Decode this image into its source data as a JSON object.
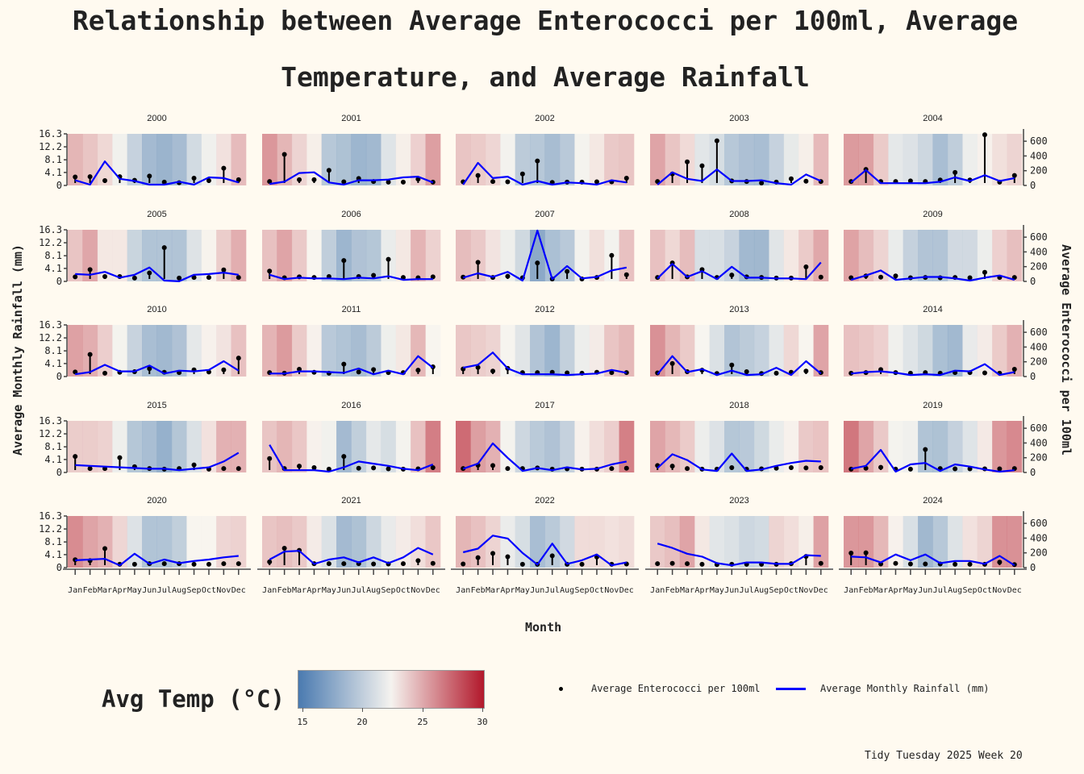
{
  "title_line1": "Relationship between Average Enterococci per 100ml, Average",
  "title_line2": "Temperature, and Average Rainfall",
  "y_left_label": "Average Monthly Rainfall (mm)",
  "y_right_label": "Average Enterococci per 100ml",
  "x_label": "Month",
  "colorbar_title": "Avg Temp (°C)",
  "colorbar_ticks": [
    "15",
    "20",
    "25",
    "30"
  ],
  "legend": {
    "enterococci_label": "Average Enterococci per 100ml",
    "rainfall_label": "Average Monthly Rainfall (mm)"
  },
  "caption": "Tidy Tuesday 2025 Week 20",
  "colors": {
    "background": "#fffaf0",
    "rainfall_line": "#0000ff",
    "enterococci_stem": "#000000",
    "temp_cold": "#4a7ab0",
    "temp_mid": "#f5f3ef",
    "temp_hot": "#b2182b"
  },
  "chart_data": {
    "type": "small-multiples (temperature heat strip + enterococci lollipop + rainfall line)",
    "months": [
      "Jan",
      "Feb",
      "Mar",
      "Apr",
      "May",
      "Jun",
      "Jul",
      "Aug",
      "Sep",
      "Oct",
      "Nov",
      "Dec"
    ],
    "ylim_left": [
      0,
      16.3
    ],
    "y_ticks_left": [
      "0",
      "4.1",
      "8.1",
      "12.2",
      "16.3"
    ],
    "ylim_right": [
      0,
      700
    ],
    "y_ticks_right": [
      "0",
      "200",
      "400",
      "600"
    ],
    "temp_range": [
      14.2,
      30.3
    ],
    "panels": [
      {
        "year": "2000",
        "temp": [
          25.6,
          24.8,
          23.8,
          21.8,
          18.9,
          16.6,
          16.0,
          16.8,
          19.7,
          21.7,
          23.3,
          25.3
        ],
        "rainfall": [
          2.0,
          2.1,
          0.8,
          2.1,
          0.9,
          2.3,
          0.3,
          0.1,
          1.6,
          0.8,
          4.9,
          1.1
        ],
        "enterococci": [
          60,
          0,
          320,
          80,
          50,
          0,
          0,
          40,
          0,
          100,
          90,
          30
        ]
      },
      {
        "year": "2001",
        "temp": [
          27.2,
          25.6,
          24.0,
          22.6,
          17.9,
          17.3,
          16.2,
          16.5,
          20.6,
          22.6,
          24.2,
          26.8
        ],
        "rainfall": [
          0.5,
          9.5,
          1.1,
          1.1,
          4.2,
          0.4,
          1.5,
          0.5,
          0.3,
          0.3,
          1.3,
          0.3
        ],
        "enterococci": [
          10,
          40,
          160,
          170,
          30,
          0,
          60,
          60,
          70,
          100,
          110,
          30
        ]
      },
      {
        "year": "2002",
        "temp": [
          24.8,
          24.5,
          23.9,
          21.9,
          18.2,
          17.9,
          16.9,
          18.0,
          22.0,
          23.0,
          24.6,
          24.8
        ],
        "rainfall": [
          0.4,
          2.5,
          0.5,
          0.4,
          3.0,
          7.3,
          0.2,
          0.3,
          0.3,
          0.4,
          0.4,
          1.6
        ],
        "enterococci": [
          0,
          300,
          90,
          110,
          0,
          50,
          0,
          30,
          20,
          0,
          60,
          30
        ]
      },
      {
        "year": "2003",
        "temp": [
          26.5,
          24.8,
          23.7,
          20.8,
          20.0,
          17.9,
          17.2,
          17.0,
          18.9,
          21.1,
          22.6,
          25.4
        ],
        "rainfall": [
          0.5,
          3.0,
          7.0,
          5.7,
          14.0,
          0.7,
          0.5,
          0.0,
          0.3,
          1.4,
          0.6,
          0.5
        ],
        "enterococci": [
          0,
          170,
          80,
          50,
          210,
          50,
          50,
          60,
          20,
          0,
          140,
          50
        ]
      },
      {
        "year": "2004",
        "temp": [
          27.0,
          26.8,
          24.5,
          21.0,
          20.4,
          19.4,
          17.0,
          18.5,
          21.5,
          22.5,
          23.4,
          24.0
        ],
        "rainfall": [
          0.5,
          4.5,
          0.5,
          0.5,
          0.7,
          0.5,
          1.0,
          3.5,
          1.0,
          16.0,
          0.3,
          2.5
        ],
        "enterococci": [
          30,
          200,
          20,
          20,
          20,
          20,
          40,
          100,
          50,
          130,
          50,
          90
        ]
      },
      {
        "year": "2005",
        "temp": [
          24.8,
          26.4,
          23.0,
          23.0,
          19.1,
          17.5,
          17.5,
          17.5,
          20.5,
          22.4,
          24.4,
          26.0
        ],
        "rainfall": [
          0.7,
          3.1,
          0.8,
          0.8,
          0.3,
          2.0,
          10.4,
          0.3,
          0.5,
          0.5,
          3.0,
          0.5
        ],
        "enterococci": [
          90,
          80,
          120,
          40,
          80,
          180,
          0,
          -10,
          80,
          90,
          110,
          80
        ]
      },
      {
        "year": "2006",
        "temp": [
          25.0,
          26.5,
          24.6,
          22.3,
          18.5,
          16.2,
          17.4,
          17.8,
          21.3,
          23.0,
          25.7,
          24.1
        ],
        "rainfall": [
          2.6,
          0.4,
          0.7,
          0.5,
          0.8,
          6.1,
          0.8,
          1.2,
          6.5,
          0.5,
          0.4,
          0.7
        ],
        "enterococci": [
          80,
          20,
          40,
          30,
          30,
          20,
          40,
          30,
          60,
          10,
          20,
          20
        ]
      },
      {
        "year": "2007",
        "temp": [
          25.2,
          24.6,
          23.2,
          21.6,
          19.5,
          15.0,
          17.1,
          18.0,
          21.9,
          23.4,
          21.9,
          25.0
        ],
        "rainfall": [
          0.6,
          5.5,
          0.5,
          0.9,
          0.4,
          5.3,
          0.0,
          2.5,
          0.0,
          0.5,
          7.8,
          1.4
        ],
        "enterococci": [
          40,
          100,
          50,
          120,
          0,
          690,
          20,
          200,
          30,
          50,
          140,
          180
        ]
      },
      {
        "year": "2008",
        "temp": [
          25.0,
          23.8,
          25.2,
          20.1,
          20.1,
          19.0,
          16.5,
          16.4,
          20.7,
          23.0,
          24.5,
          26.3
        ],
        "rainfall": [
          0.5,
          5.3,
          0.7,
          3.1,
          0.5,
          1.3,
          0.7,
          0.5,
          0.3,
          0.3,
          4.0,
          0.6
        ],
        "enterococci": [
          30,
          230,
          50,
          130,
          20,
          190,
          40,
          40,
          30,
          30,
          20,
          250
        ]
      },
      {
        "year": "2009",
        "temp": [
          26.6,
          25.2,
          24.0,
          21.3,
          18.8,
          17.6,
          17.6,
          19.6,
          19.6,
          21.5,
          24.2,
          25.1
        ],
        "rainfall": [
          0.4,
          1.0,
          0.6,
          1.0,
          0.4,
          0.5,
          0.4,
          0.5,
          0.4,
          2.2,
          0.5,
          0.5
        ],
        "enterococci": [
          10,
          70,
          140,
          10,
          30,
          50,
          50,
          30,
          0,
          40,
          70,
          10
        ]
      },
      {
        "year": "2010",
        "temp": [
          26.7,
          26.0,
          24.3,
          22.0,
          19.0,
          17.0,
          16.5,
          17.4,
          21.0,
          22.5,
          23.2,
          25.0
        ],
        "rainfall": [
          0.7,
          6.5,
          0.3,
          0.6,
          0.8,
          1.8,
          0.6,
          0.5,
          1.4,
          0.7,
          1.4,
          5.3
        ],
        "enterococci": [
          20,
          50,
          150,
          60,
          60,
          140,
          30,
          70,
          60,
          80,
          200,
          70
        ]
      },
      {
        "year": "2011",
        "temp": [
          25.7,
          27.0,
          24.5,
          22.5,
          18.0,
          17.5,
          16.9,
          18.2,
          21.6,
          23.0,
          25.5,
          22.3
        ],
        "rainfall": [
          0.5,
          0.3,
          1.6,
          0.6,
          0.3,
          3.3,
          0.7,
          1.5,
          0.5,
          0.5,
          1.3,
          2.4
        ],
        "enterococci": [
          30,
          30,
          60,
          60,
          50,
          40,
          100,
          20,
          70,
          20,
          270,
          110
        ]
      },
      {
        "year": "2012",
        "temp": [
          24.7,
          24.4,
          24.0,
          22.1,
          20.7,
          17.6,
          16.2,
          18.7,
          21.5,
          22.8,
          24.8,
          25.5
        ],
        "rainfall": [
          1.7,
          2.2,
          1.0,
          1.9,
          0.5,
          0.5,
          0.6,
          0.4,
          0.3,
          0.6,
          0.5,
          0.5
        ],
        "enterococci": [
          110,
          150,
          320,
          100,
          20,
          20,
          20,
          10,
          20,
          30,
          80,
          40
        ]
      },
      {
        "year": "2013",
        "temp": [
          27.5,
          25.6,
          24.5,
          22.2,
          20.3,
          17.6,
          18.2,
          18.9,
          21.0,
          23.8,
          22.3,
          26.5
        ],
        "rainfall": [
          0.4,
          3.5,
          0.8,
          1.3,
          0.2,
          3.0,
          0.8,
          0.2,
          0.3,
          0.6,
          1.0,
          0.5
        ],
        "enterococci": [
          20,
          270,
          50,
          90,
          10,
          70,
          10,
          20,
          110,
          10,
          200,
          30
        ]
      },
      {
        "year": "2014",
        "temp": [
          25.0,
          24.7,
          24.2,
          21.7,
          20.6,
          19.5,
          17.1,
          16.5,
          21.2,
          22.8,
          24.5,
          25.8
        ],
        "rainfall": [
          0.3,
          0.5,
          1.5,
          0.5,
          0.3,
          0.5,
          0.3,
          0.5,
          0.5,
          0.4,
          0.3,
          1.6
        ],
        "enterococci": [
          30,
          50,
          60,
          40,
          10,
          20,
          10,
          70,
          60,
          160,
          10,
          50
        ]
      },
      {
        "year": "2015",
        "temp": [
          24.4,
          24.4,
          24.1,
          21.6,
          17.8,
          17.0,
          15.7,
          17.7,
          20.3,
          23.3,
          25.8,
          25.8
        ],
        "rainfall": [
          4.5,
          0.5,
          0.5,
          4.1,
          1.1,
          0.5,
          0.3,
          0.5,
          1.7,
          0.3,
          0.5,
          0.5
        ],
        "enterococci": [
          90,
          80,
          70,
          60,
          50,
          40,
          40,
          20,
          40,
          60,
          140,
          260
        ]
      },
      {
        "year": "2016",
        "temp": [
          24.8,
          25.6,
          24.7,
          22.5,
          21.8,
          16.6,
          18.6,
          21.0,
          20.0,
          22.0,
          25.0,
          28.5
        ],
        "rainfall": [
          3.8,
          0.5,
          1.3,
          0.8,
          0.3,
          4.5,
          0.6,
          0.7,
          0.4,
          0.3,
          0.4,
          0.8
        ],
        "enterococci": [
          370,
          20,
          20,
          20,
          0,
          60,
          140,
          110,
          80,
          40,
          20,
          100
        ]
      },
      {
        "year": "2017",
        "temp": [
          29.5,
          26.8,
          25.8,
          22.0,
          19.4,
          18.1,
          17.4,
          18.8,
          22.5,
          23.5,
          24.3,
          28.4
        ],
        "rainfall": [
          0.5,
          1.6,
          1.5,
          0.5,
          0.5,
          0.7,
          0.3,
          0.4,
          0.3,
          0.3,
          0.5,
          0.6
        ],
        "enterococci": [
          40,
          110,
          390,
          190,
          10,
          50,
          20,
          60,
          30,
          40,
          100,
          140
        ]
      },
      {
        "year": "2018",
        "temp": [
          26.5,
          25.5,
          24.5,
          21.5,
          20.4,
          17.8,
          18.0,
          19.5,
          21.3,
          22.5,
          24.6,
          24.9
        ],
        "rainfall": [
          1.5,
          1.3,
          0.5,
          0.3,
          0.3,
          0.8,
          0.3,
          0.4,
          0.6,
          0.8,
          0.7,
          0.8
        ],
        "enterococci": [
          50,
          240,
          160,
          30,
          10,
          250,
          10,
          30,
          80,
          120,
          150,
          140
        ]
      },
      {
        "year": "2019",
        "temp": [
          28.9,
          26.5,
          24.6,
          22.0,
          21.7,
          17.5,
          17.3,
          18.8,
          20.6,
          22.9,
          27.2,
          27.9
        ],
        "rainfall": [
          0.3,
          0.6,
          0.9,
          0.3,
          0.3,
          6.8,
          0.5,
          0.4,
          0.4,
          0.4,
          0.4,
          0.5
        ],
        "enterococci": [
          40,
          80,
          300,
          0,
          100,
          120,
          10,
          100,
          70,
          30,
          0,
          20
        ]
      },
      {
        "year": "2020",
        "temp": [
          27.8,
          26.5,
          25.8,
          23.9,
          20.4,
          17.5,
          17.5,
          18.6,
          22.3,
          22.3,
          23.9,
          24.1
        ],
        "rainfall": [
          1.8,
          1.5,
          5.5,
          0.3,
          0.3,
          0.5,
          0.5,
          0.5,
          0.3,
          0.3,
          0.5,
          0.5
        ],
        "enterococci": [
          90,
          100,
          110,
          20,
          180,
          40,
          100,
          50,
          80,
          100,
          130,
          150
        ]
      },
      {
        "year": "2021",
        "temp": [
          24.8,
          25.1,
          24.6,
          22.8,
          20.3,
          16.6,
          17.3,
          19.4,
          21.2,
          22.8,
          23.5,
          24.7
        ],
        "rainfall": [
          1.1,
          5.6,
          4.9,
          0.5,
          0.5,
          0.5,
          0.5,
          0.4,
          0.4,
          0.5,
          1.5,
          0.6
        ],
        "enterococci": [
          100,
          210,
          220,
          40,
          100,
          130,
          60,
          130,
          50,
          130,
          260,
          170
        ]
      },
      {
        "year": "2022",
        "temp": [
          25.6,
          25.0,
          24.0,
          21.4,
          20.0,
          17.0,
          18.1,
          19.6,
          23.6,
          23.6,
          23.3,
          23.6
        ],
        "rainfall": [
          0.4,
          2.5,
          3.9,
          2.8,
          0.3,
          0.3,
          3.1,
          0.3,
          0.3,
          2.7,
          0.3,
          0.4
        ],
        "enterococci": [
          200,
          250,
          430,
          390,
          190,
          30,
          320,
          40,
          90,
          170,
          20,
          60
        ]
      },
      {
        "year": "2023",
        "temp": [
          24.6,
          25.1,
          26.5,
          23.0,
          20.8,
          20.3,
          19.4,
          19.7,
          24.0,
          23.5,
          22.6,
          26.7
        ],
        "rainfall": [
          0.5,
          0.6,
          0.5,
          0.3,
          0.2,
          0.3,
          0.3,
          0.3,
          0.3,
          0.5,
          2.9,
          0.6
        ],
        "enterococci": [
          320,
          260,
          180,
          140,
          50,
          20,
          60,
          60,
          40,
          40,
          160,
          150
        ]
      },
      {
        "year": "2024",
        "temp": [
          27.2,
          27.2,
          25.5,
          22.5,
          20.2,
          16.4,
          17.9,
          20.5,
          23.3,
          24.0,
          27.5,
          27.5
        ],
        "rainfall": [
          4.0,
          4.1,
          0.4,
          0.6,
          0.4,
          0.4,
          0.4,
          0.3,
          0.3,
          0.3,
          1.0,
          0.2
        ],
        "enterococci": [
          140,
          130,
          60,
          170,
          90,
          170,
          50,
          80,
          80,
          40,
          150,
          20
        ]
      }
    ]
  }
}
